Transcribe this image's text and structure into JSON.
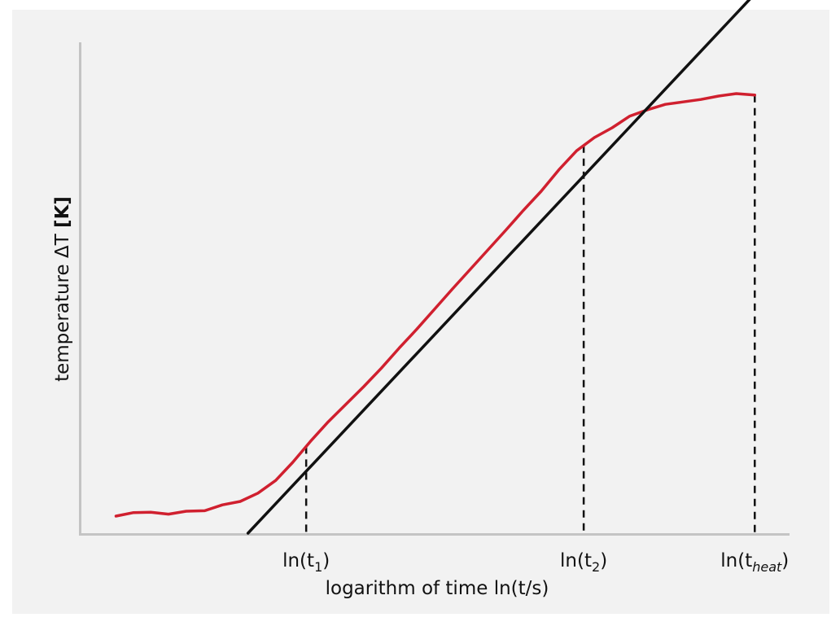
{
  "chart_data": {
    "type": "line",
    "title": "",
    "xlabel": "logarithm of time ln(t/s)",
    "ylabel": {
      "text": "temperature ΔT ",
      "unit": "[K]"
    },
    "grid": false,
    "legend": "none",
    "x_ticks_shown": false,
    "y_ticks_shown": false,
    "xlim": [
      0,
      100
    ],
    "ylim": [
      0,
      100
    ],
    "markers": [
      {
        "x": 31.9,
        "base": "ln(t",
        "sub": "1",
        "end": ")",
        "sub_italic": false
      },
      {
        "x": 71.0,
        "base": "ln(t",
        "sub": "2",
        "end": ")",
        "sub_italic": false
      },
      {
        "x": 95.1,
        "base": "ln(t",
        "sub": "heat",
        "end": ")",
        "sub_italic": true
      }
    ],
    "series": [
      {
        "kind": "measured",
        "color": "#d0202f",
        "x": [
          5.1,
          7.5,
          10.0,
          12.5,
          15.0,
          17.6,
          20.1,
          22.6,
          25.1,
          27.6,
          30.0,
          32.5,
          35.0,
          37.5,
          40.0,
          42.5,
          45.0,
          47.5,
          50.0,
          52.5,
          55.0,
          57.5,
          60.0,
          62.5,
          65.0,
          67.5,
          70.0,
          72.5,
          75.0,
          77.5,
          80.0,
          82.5,
          85.0,
          87.5,
          90.0,
          92.5,
          95.1
        ],
        "y": [
          3.5,
          4.2,
          4.3,
          3.9,
          4.5,
          4.6,
          5.8,
          6.5,
          8.2,
          10.8,
          14.5,
          18.8,
          22.8,
          26.4,
          30.0,
          33.8,
          37.9,
          41.8,
          45.9,
          50.0,
          54.0,
          58.0,
          62.0,
          66.1,
          70.0,
          74.4,
          78.3,
          81.0,
          83.0,
          85.4,
          86.7,
          87.8,
          88.3,
          88.8,
          89.5,
          90.0,
          89.7
        ]
      },
      {
        "kind": "fit-line",
        "color": "#111111",
        "x": [
          23.7,
          101.3
        ],
        "y": [
          0.0,
          120.0
        ]
      }
    ]
  }
}
